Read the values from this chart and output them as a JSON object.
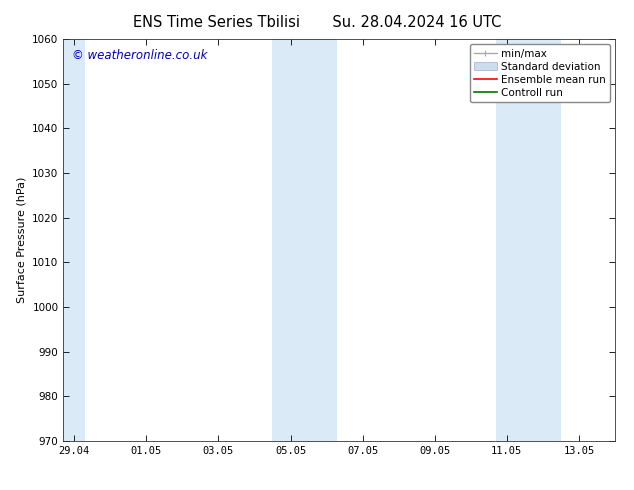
{
  "title_left": "ENS Time Series Tbilisi",
  "title_right": "Su. 28.04.2024 16 UTC",
  "ylabel": "Surface Pressure (hPa)",
  "ylim": [
    970,
    1060
  ],
  "yticks": [
    970,
    980,
    990,
    1000,
    1010,
    1020,
    1030,
    1040,
    1050,
    1060
  ],
  "xtick_labels": [
    "29.04",
    "01.05",
    "03.05",
    "05.05",
    "07.05",
    "09.05",
    "11.05",
    "13.05"
  ],
  "xtick_positions": [
    0,
    2,
    4,
    6,
    8,
    10,
    12,
    14
  ],
  "xlim": [
    -0.3,
    15.0
  ],
  "bg_color": "#ffffff",
  "plot_bg_color": "#ffffff",
  "shaded_regions": [
    {
      "x_start": -0.3,
      "x_end": 0.3,
      "color": "#daeaf6"
    },
    {
      "x_start": 5.5,
      "x_end": 7.3,
      "color": "#daeaf6"
    },
    {
      "x_start": 11.7,
      "x_end": 13.5,
      "color": "#daeaf6"
    }
  ],
  "copyright_text": "© weatheronline.co.uk",
  "copyright_color": "#0000bb",
  "legend_labels": [
    "min/max",
    "Standard deviation",
    "Ensemble mean run",
    "Controll run"
  ],
  "legend_colors": [
    "#aaaaaa",
    "#ccdeed",
    "#ff0000",
    "#007700"
  ],
  "title_fontsize": 10.5,
  "axis_label_fontsize": 8,
  "tick_fontsize": 7.5,
  "legend_fontsize": 7.5,
  "copyright_fontsize": 8.5
}
